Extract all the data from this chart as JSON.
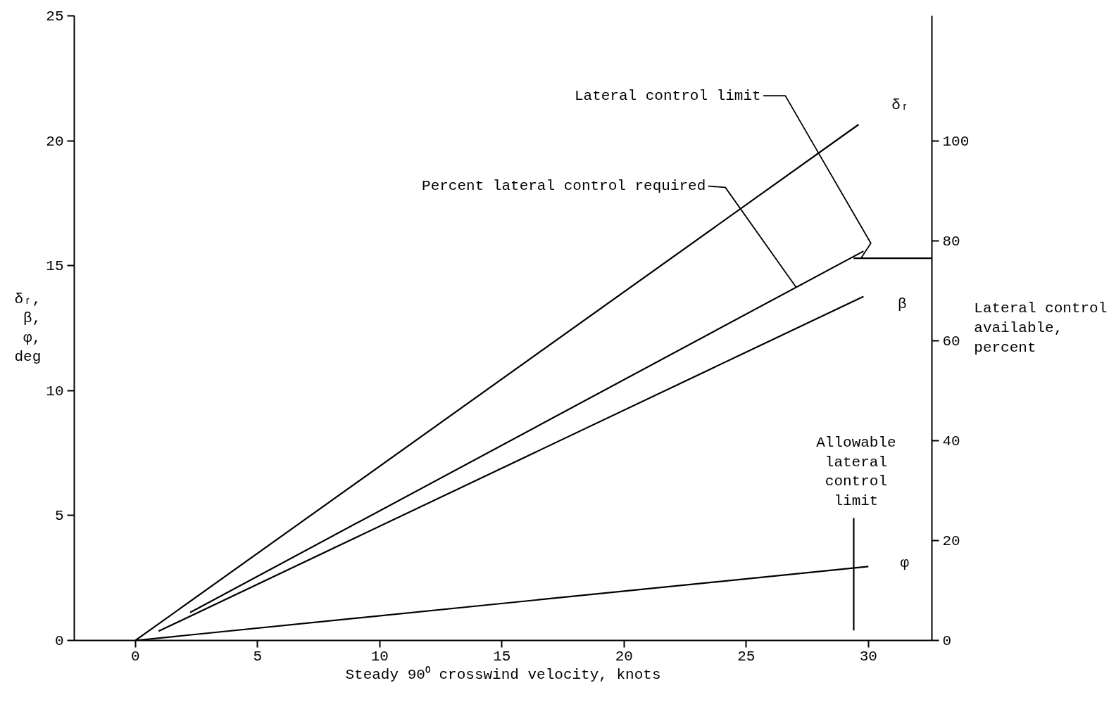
{
  "chart_data": {
    "type": "line",
    "xlabel": "Steady 90⁰ crosswind velocity, knots",
    "ylabel": "δᵣ, β, φ, deg",
    "y2label": "Lateral control available, percent",
    "xlim": [
      -2.5,
      32.6
    ],
    "xticks": [
      0,
      5,
      10,
      15,
      20,
      25,
      30
    ],
    "ylim": [
      0,
      25
    ],
    "yticks": [
      0,
      5,
      10,
      15,
      20,
      25
    ],
    "y2lim": [
      0,
      125
    ],
    "y2ticks": [
      0,
      20,
      40,
      60,
      80,
      100
    ],
    "grid": false,
    "marker": "none",
    "line_style": "solid",
    "series": [
      {
        "name": "δᵣ",
        "color": "#000000",
        "x": [
          0,
          29.6
        ],
        "values": [
          0,
          20.65
        ]
      },
      {
        "name": "β",
        "color": "#000000",
        "x": [
          0.95,
          29.8
        ],
        "values": [
          0.37,
          13.77
        ]
      },
      {
        "name": "φ",
        "color": "#000000",
        "x": [
          0,
          30
        ],
        "values": [
          0,
          2.96
        ]
      },
      {
        "name": "Percent lateral control required",
        "color": "#000000",
        "axis": "y2",
        "x": [
          2.24,
          29.8
        ],
        "values": [
          5.6,
          77.9
        ]
      },
      {
        "name": "Lateral control limit",
        "color": "#000000",
        "axis": "y2",
        "x": [
          29.4,
          32.6
        ],
        "values": [
          76.5,
          76.5
        ]
      },
      {
        "name": "Allowable lateral control limit",
        "color": "#000000",
        "x": [
          29.4,
          29.4
        ],
        "values": [
          0.4,
          4.9
        ]
      }
    ]
  }
}
